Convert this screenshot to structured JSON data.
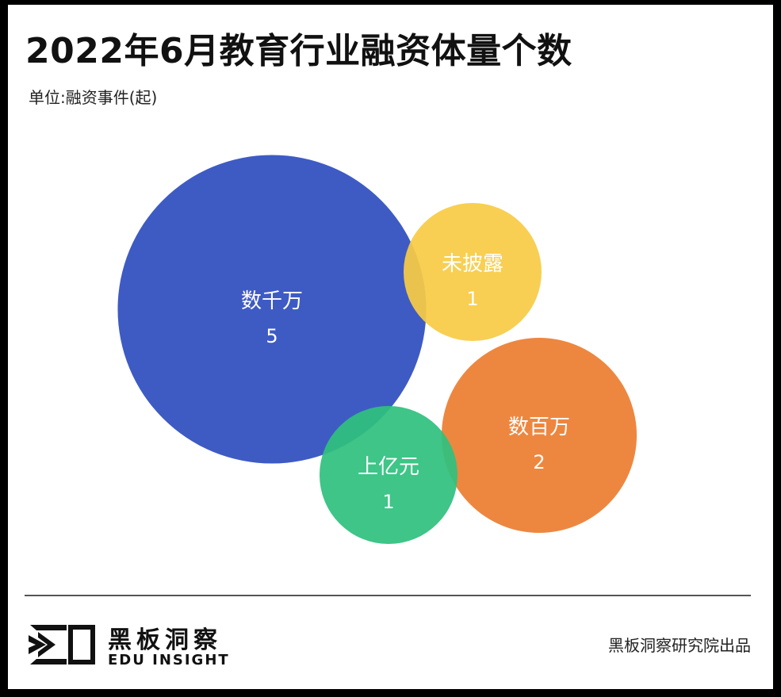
{
  "header": {
    "title": "2022年6月教育行业融资体量个数",
    "unit": "单位:融资事件(起)"
  },
  "chart_data": {
    "type": "bubble",
    "title": "2022年6月教育行业融资体量个数",
    "subtitle": "单位:融资事件(起)",
    "categories": [
      "数千万",
      "未披露",
      "数百万",
      "上亿元"
    ],
    "values": [
      5,
      1,
      2,
      1
    ],
    "colors": [
      "#2F4FBF",
      "#F7CB45",
      "#EC7E32",
      "#2FC17E"
    ]
  },
  "footer": {
    "brand_cn": "黑板洞察",
    "brand_en": "EDU INSIGHT",
    "source": "黑板洞察研究院出品"
  }
}
